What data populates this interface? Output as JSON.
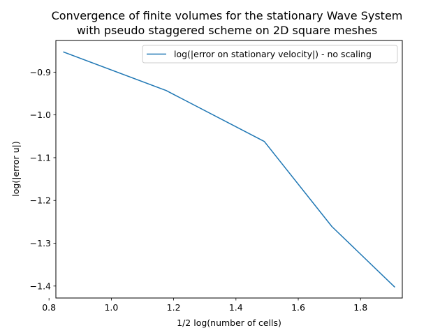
{
  "chart_data": {
    "type": "line",
    "title_lines": [
      "Convergence of finite volumes for the stationary Wave System",
      "with pseudo staggered scheme on 2D square meshes"
    ],
    "xlabel": "1/2 log(number of cells)",
    "ylabel": "log(|error u|)",
    "xlim": [
      0.822,
      1.934
    ],
    "ylim": [
      -1.428,
      -0.826
    ],
    "x_ticks": [
      0.8,
      1.0,
      1.2,
      1.4,
      1.6,
      1.8
    ],
    "x_tick_labels": [
      "0.8",
      "1.0",
      "1.2",
      "1.4",
      "1.6",
      "1.8"
    ],
    "y_ticks": [
      -0.9,
      -1.0,
      -1.1,
      -1.2,
      -1.3,
      -1.4
    ],
    "y_tick_labels": [
      "−0.9",
      "−1.0",
      "−1.1",
      "−1.2",
      "−1.3",
      "−1.4"
    ],
    "grid": false,
    "legend_position": "top-right",
    "series": [
      {
        "name": "log(|error on stationary velocity|) - no scaling",
        "color": "#1f77b4",
        "x": [
          0.847,
          1.176,
          1.491,
          1.708,
          1.909
        ],
        "y": [
          -0.853,
          -0.943,
          -1.062,
          -1.261,
          -1.402
        ]
      }
    ]
  }
}
